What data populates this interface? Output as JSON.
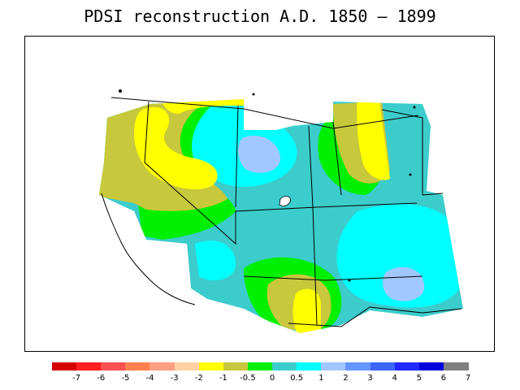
{
  "title": "PDSI reconstruction A.D. 1850 – 1899",
  "colorbar": {
    "colors": [
      "#d40000",
      "#ff1f1f",
      "#ff5050",
      "#ff7f50",
      "#ffa080",
      "#ffd0a0",
      "#ffff00",
      "#c8c83c",
      "#00f000",
      "#3ccccc",
      "#00ffff",
      "#a0c8ff",
      "#6496ff",
      "#3c64ff",
      "#1e28ff",
      "#0000dc",
      "#808080"
    ],
    "labels": [
      "-7",
      "-6",
      "-5",
      "-4",
      "-3",
      "-2",
      "-1",
      "-0.5",
      "0",
      "0.5",
      "1",
      "2",
      "3",
      "4",
      "5",
      "6",
      "7"
    ]
  },
  "map": {
    "region": "western United States",
    "palette": {
      "yellow": "#ffff00",
      "olive": "#c8c83c",
      "green": "#00f000",
      "teal": "#3ccccc",
      "cyan": "#00ffff",
      "lightblue": "#a0c8ff",
      "outline": "#000000"
    }
  }
}
